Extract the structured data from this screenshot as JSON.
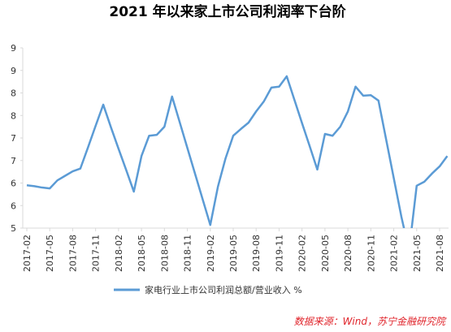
{
  "chart_data": {
    "type": "line",
    "title": "2021 年以来家上市公司利润率下台阶",
    "categories": [
      "2017-02",
      null,
      null,
      "2017-05",
      null,
      null,
      "2017-08",
      null,
      null,
      "2017-11",
      null,
      null,
      "2018-02",
      null,
      null,
      "2018-05",
      null,
      null,
      "2018-08",
      null,
      null,
      "2018-11",
      null,
      null,
      "2019-02",
      null,
      null,
      "2019-05",
      null,
      null,
      "2019-08",
      null,
      null,
      "2019-11",
      null,
      null,
      "2020-02",
      null,
      null,
      "2020-05",
      null,
      null,
      "2020-08",
      null,
      null,
      "2020-11",
      null,
      null,
      "2021-02",
      null,
      null,
      "2021-05",
      null,
      null,
      "2021-08",
      null
    ],
    "series": [
      {
        "name": "家电行业上市公司利润总额/营业收入 %",
        "color": "#5b9bd5",
        "values": [
          5.95,
          5.93,
          5.9,
          5.88,
          6.06,
          6.16,
          6.26,
          6.32,
          6.79,
          7.27,
          7.74,
          7.24,
          6.76,
          6.29,
          5.81,
          6.6,
          7.05,
          7.07,
          7.25,
          7.92,
          7.35,
          6.78,
          6.21,
          5.64,
          5.07,
          5.92,
          6.55,
          7.05,
          7.2,
          7.34,
          7.59,
          7.81,
          8.12,
          8.14,
          8.37,
          7.85,
          7.33,
          6.82,
          6.3,
          7.09,
          7.05,
          7.25,
          7.59,
          8.14,
          7.94,
          7.95,
          7.83,
          6.97,
          6.11,
          5.25,
          4.5,
          5.94,
          6.03,
          6.21,
          6.37,
          6.6
        ]
      }
    ],
    "ylim": [
      5,
      9
    ],
    "yticks": [
      5,
      {
        "value": 5.5,
        "label": "6"
      },
      6,
      {
        "value": 6.5,
        "label": "7"
      },
      7,
      {
        "value": 7.5,
        "label": "8"
      },
      8,
      {
        "value": 8.5,
        "label": "9"
      },
      9
    ],
    "grid": false,
    "legend": "bottom",
    "source": "数据来源：Wind，苏宁金融研究院"
  }
}
